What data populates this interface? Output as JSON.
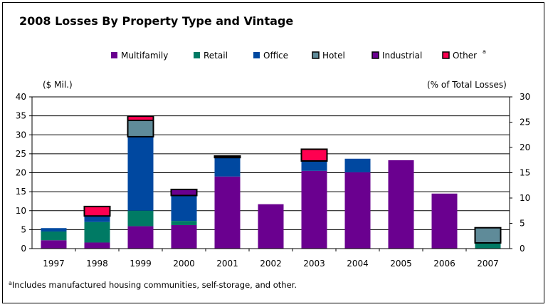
{
  "chart_data": {
    "type": "bar",
    "stacked": true,
    "title": "2008 Losses By Property Type and Vintage",
    "left_axis_label": "($ Mil.)",
    "right_axis_label": "(% of Total Losses)",
    "ylim": [
      0,
      40
    ],
    "yticks": [
      0,
      5,
      10,
      15,
      20,
      25,
      30,
      35,
      40
    ],
    "right_ylim": [
      0,
      30
    ],
    "right_yticks": [
      0,
      5,
      10,
      15,
      20,
      25,
      30
    ],
    "grid": true,
    "legend_position": "top",
    "categories": [
      "1997",
      "1998",
      "1999",
      "2000",
      "2001",
      "2002",
      "2003",
      "2004",
      "2005",
      "2006",
      "2007"
    ],
    "series": [
      {
        "name": "Multifamily",
        "color": "#6a008f",
        "outlined": false,
        "values": [
          2.2,
          1.6,
          5.9,
          6.2,
          19.0,
          11.7,
          20.5,
          20.1,
          23.3,
          14.5,
          0
        ]
      },
      {
        "name": "Retail",
        "color": "#007a64",
        "outlined": false,
        "values": [
          2.3,
          5.4,
          4.1,
          1.1,
          0,
          0,
          0,
          0,
          0,
          0,
          1.5
        ]
      },
      {
        "name": "Office",
        "color": "#0048a0",
        "outlined": false,
        "values": [
          0.9,
          1.6,
          19.5,
          6.7,
          5.0,
          0,
          2.6,
          3.6,
          0,
          0,
          0
        ]
      },
      {
        "name": "Hotel",
        "color": "#5f8b99",
        "outlined": true,
        "values": [
          0,
          0,
          4.3,
          0,
          0,
          0,
          0,
          0,
          0,
          0,
          4.0
        ]
      },
      {
        "name": "Industrial",
        "color": "#6a008f",
        "outlined": true,
        "values": [
          0,
          0,
          0,
          1.6,
          0.4,
          0,
          0,
          0,
          0,
          0,
          0
        ]
      },
      {
        "name": "Other",
        "color": "#ff0050",
        "outlined": true,
        "values": [
          0,
          2.5,
          1.1,
          0,
          0,
          0,
          3.1,
          0,
          0,
          0,
          0
        ]
      }
    ],
    "legend_note": "a",
    "footnote": {
      "marker": "a",
      "text": "Includes manufactured housing communities, self-storage, and other."
    }
  }
}
